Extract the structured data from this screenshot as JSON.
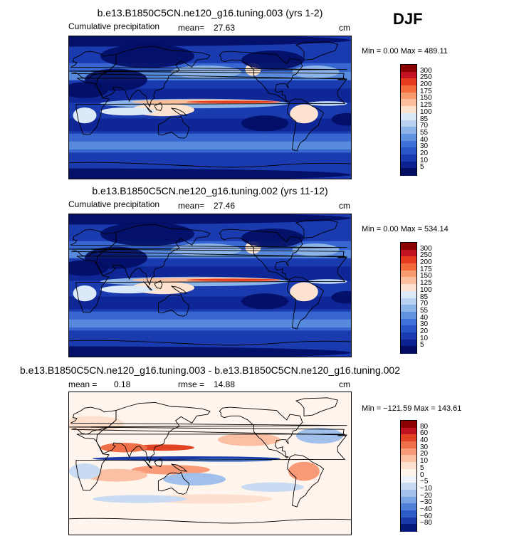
{
  "season_label": "DJF",
  "panels": [
    {
      "title": "b.e13.B1850C5CN.ne120_g16.tuning.003 (yrs 1-2)",
      "left_label": "Cumulative precipitation",
      "stat1_label": "mean=",
      "stat1_value": "27.63",
      "stat2_label": "",
      "stat2_value": "",
      "units": "cm",
      "minmax": "Min =   0.00 Max = 489.11",
      "field": "precip",
      "colorbar": {
        "levels": [
          "300",
          "250",
          "200",
          "175",
          "150",
          "125",
          "100",
          "85",
          "70",
          "55",
          "40",
          "30",
          "20",
          "10",
          "5"
        ],
        "colors": [
          "#8b0000",
          "#c1121f",
          "#e63b1f",
          "#f26b3a",
          "#f79a6f",
          "#fbbf9e",
          "#fde3d0",
          "#dce9f8",
          "#b9d2f1",
          "#8cb4e8",
          "#5f93e0",
          "#3f72d8",
          "#2855c8",
          "#1a3bb0",
          "#0d2290",
          "#020d63"
        ]
      }
    },
    {
      "title": "b.e13.B1850C5CN.ne120_g16.tuning.002 (yrs 11-12)",
      "left_label": "Cumulative precipitation",
      "stat1_label": "mean=",
      "stat1_value": "27.46",
      "stat2_label": "",
      "stat2_value": "",
      "units": "cm",
      "minmax": "Min =   0.00 Max = 534.14",
      "field": "precip",
      "colorbar": {
        "levels": [
          "300",
          "250",
          "200",
          "175",
          "150",
          "125",
          "100",
          "85",
          "70",
          "55",
          "40",
          "30",
          "20",
          "10",
          "5"
        ],
        "colors": [
          "#8b0000",
          "#c1121f",
          "#e63b1f",
          "#f26b3a",
          "#f79a6f",
          "#fbbf9e",
          "#fde3d0",
          "#dce9f8",
          "#b9d2f1",
          "#8cb4e8",
          "#5f93e0",
          "#3f72d8",
          "#2855c8",
          "#1a3bb0",
          "#0d2290",
          "#020d63"
        ]
      }
    },
    {
      "title": "b.e13.B1850C5CN.ne120_g16.tuning.003 - b.e13.B1850C5CN.ne120_g16.tuning.002",
      "left_label": "",
      "stat1_label": "mean =",
      "stat1_value": "0.18",
      "stat2_label": "rmse =",
      "stat2_value": "14.88",
      "units": "cm",
      "minmax": "Min = −121.59 Max = 143.61",
      "field": "diff",
      "colorbar": {
        "levels": [
          "80",
          "60",
          "40",
          "30",
          "20",
          "10",
          "5",
          "0",
          "−5",
          "−10",
          "−20",
          "−30",
          "−40",
          "−60",
          "−80"
        ],
        "colors": [
          "#8b0000",
          "#c1121f",
          "#e04424",
          "#ef6f48",
          "#f69a77",
          "#fbbfa4",
          "#fde0cd",
          "#fff5ec",
          "#eef3fb",
          "#c9daf3",
          "#a2c0ec",
          "#7aa3e3",
          "#4f7fd8",
          "#2e5cc8",
          "#1a3aa8",
          "#06197a"
        ]
      }
    }
  ],
  "chart_data": [
    {
      "type": "heatmap",
      "title": "b.e13.B1850C5CN.ne120_g16.tuning.003 (yrs 1-2)",
      "subtitle": "Cumulative precipitation",
      "units": "cm",
      "mean": 27.63,
      "min": 0.0,
      "max": 489.11,
      "contour_levels": [
        5,
        10,
        20,
        30,
        40,
        55,
        70,
        85,
        100,
        125,
        150,
        175,
        200,
        250,
        300
      ]
    },
    {
      "type": "heatmap",
      "title": "b.e13.B1850C5CN.ne120_g16.tuning.002 (yrs 11-12)",
      "subtitle": "Cumulative precipitation",
      "units": "cm",
      "mean": 27.46,
      "min": 0.0,
      "max": 534.14,
      "contour_levels": [
        5,
        10,
        20,
        30,
        40,
        55,
        70,
        85,
        100,
        125,
        150,
        175,
        200,
        250,
        300
      ]
    },
    {
      "type": "heatmap",
      "title": "b.e13.B1850C5CN.ne120_g16.tuning.003 - b.e13.B1850C5CN.ne120_g16.tuning.002",
      "units": "cm",
      "mean": 0.18,
      "rmse": 14.88,
      "min": -121.59,
      "max": 143.61,
      "contour_levels": [
        -80,
        -60,
        -40,
        -30,
        -20,
        -10,
        -5,
        0,
        5,
        10,
        20,
        30,
        40,
        60,
        80
      ]
    }
  ]
}
